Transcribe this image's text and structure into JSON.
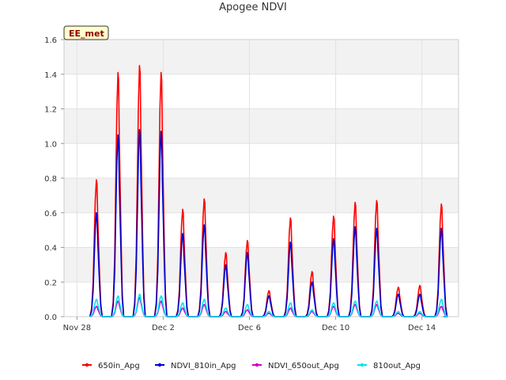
{
  "chart_data": {
    "type": "line",
    "title": "Apogee NDVI",
    "site_label": "EE_met",
    "xlabel": "",
    "ylabel": "",
    "ylim": [
      0,
      1.6
    ],
    "xlim": [
      -0.6,
      17.7
    ],
    "y_ticks": [
      0.0,
      0.2,
      0.4,
      0.6,
      0.8,
      1.0,
      1.2,
      1.4,
      1.6
    ],
    "y_tick_labels": [
      "0.0",
      "0.2",
      "0.4",
      "0.6",
      "0.8",
      "1.0",
      "1.2",
      "1.4",
      "1.6"
    ],
    "x_ticks": [
      0,
      4,
      8,
      12,
      16
    ],
    "x_tick_labels": [
      "Nov 28",
      "Dec 2",
      "Dec 6",
      "Dec 10",
      "Dec 14"
    ],
    "x_unit": "days since Nov 28",
    "daily_peak_day": [
      0.9,
      1.9,
      2.9,
      3.9,
      4.9,
      5.9,
      6.9,
      7.9,
      8.9,
      9.9,
      10.9,
      11.9,
      12.9,
      13.9,
      14.9,
      15.9,
      16.9
    ],
    "series": [
      {
        "name": "650in_Apg",
        "color": "#ff0000",
        "daily_peaks": [
          0.79,
          1.41,
          1.45,
          1.41,
          0.62,
          0.68,
          0.37,
          0.44,
          0.15,
          0.57,
          0.26,
          0.58,
          0.66,
          0.67,
          0.17,
          0.18,
          0.65
        ]
      },
      {
        "name": "NDVI_810in_Apg",
        "color": "#0000cc",
        "daily_peaks": [
          0.6,
          1.05,
          1.08,
          1.07,
          0.48,
          0.53,
          0.3,
          0.37,
          0.12,
          0.43,
          0.2,
          0.45,
          0.52,
          0.51,
          0.13,
          0.13,
          0.51
        ]
      },
      {
        "name": "NDVI_650out_Apg",
        "color": "#cc00cc",
        "daily_peaks": [
          0.06,
          0.09,
          0.11,
          0.09,
          0.05,
          0.07,
          0.03,
          0.04,
          0.02,
          0.05,
          0.03,
          0.06,
          0.07,
          0.07,
          0.02,
          0.02,
          0.06
        ]
      },
      {
        "name": "810out_Apg",
        "color": "#00e5ee",
        "daily_peaks": [
          0.1,
          0.12,
          0.13,
          0.12,
          0.08,
          0.1,
          0.05,
          0.07,
          0.03,
          0.08,
          0.04,
          0.08,
          0.09,
          0.09,
          0.03,
          0.03,
          0.1
        ]
      }
    ],
    "grid": true,
    "legend_position": "bottom"
  }
}
